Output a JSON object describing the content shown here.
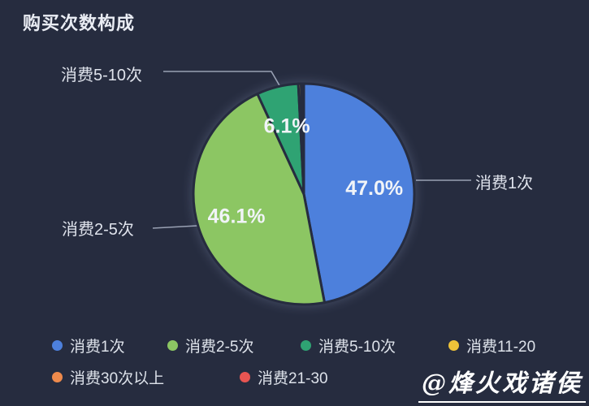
{
  "page": {
    "background": "#262c3f"
  },
  "watermark": {
    "text": "@烽火戏诸侯"
  },
  "chart_data": {
    "type": "pie",
    "title": "购买次数构成",
    "categories": [
      "消费1次",
      "消费2-5次",
      "消费5-10次",
      "消费11-20",
      "消费30次以上",
      "消费21-30"
    ],
    "values": [
      47.0,
      46.1,
      6.1,
      0.4,
      0.2,
      0.2
    ],
    "value_labels": [
      "47.0%",
      "46.1%",
      "6.1%",
      "",
      "",
      ""
    ],
    "colors": [
      "#4d80dc",
      "#8cc663",
      "#2fa373",
      "#edc239",
      "#ee8a4c",
      "#e85552"
    ],
    "legend_position": "bottom",
    "start_angle_deg_from_top_clockwise": 0,
    "callouts": [
      {
        "label": "消费5-10次"
      },
      {
        "label": "消费1次"
      },
      {
        "label": "消费2-5次"
      }
    ],
    "legend": [
      {
        "label": "消费1次",
        "color": "#4d80dc"
      },
      {
        "label": "消费2-5次",
        "color": "#8cc663"
      },
      {
        "label": "消费5-10次",
        "color": "#2fa373"
      },
      {
        "label": "消费11-20",
        "color": "#edc239"
      },
      {
        "label": "消费30次以上",
        "color": "#ee8a4c"
      },
      {
        "label": "消费21-30",
        "color": "#e85552"
      }
    ]
  }
}
